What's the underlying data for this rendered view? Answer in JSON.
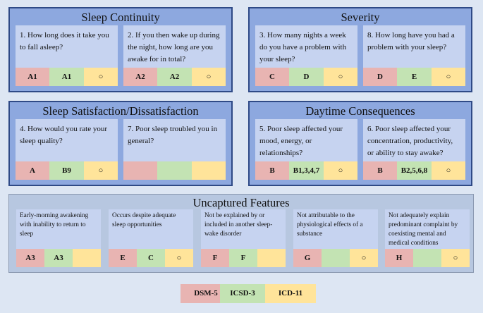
{
  "sleep_continuity": {
    "title": "Sleep Continuity",
    "q1": {
      "text": "1. How long does it take you to fall asleep?",
      "dsm": "A1",
      "icsd": "A1",
      "icd": "○"
    },
    "q2": {
      "text": "2. If you then wake up during the night, how long are you awake for in total?",
      "dsm": "A2",
      "icsd": "A2",
      "icd": "○"
    }
  },
  "severity": {
    "title": "Severity",
    "q3": {
      "text": "3. How many nights a week do you have a problem with your sleep?",
      "dsm": "C",
      "icsd": "D",
      "icd": "○"
    },
    "q8": {
      "text": "8. How long have you had a problem with your sleep?",
      "dsm": "D",
      "icsd": "E",
      "icd": "○"
    }
  },
  "satisfaction": {
    "title": "Sleep Satisfaction/Dissatisfaction",
    "q4": {
      "text": "4. How would you rate your sleep quality?",
      "dsm": "A",
      "icsd": "B9",
      "icd": "○"
    },
    "q7": {
      "text": "7. Poor sleep troubled you in general?",
      "dsm": "",
      "icsd": "",
      "icd": ""
    }
  },
  "daytime": {
    "title": "Daytime Consequences",
    "q5": {
      "text": "5. Poor sleep affected your mood, energy, or relationships?",
      "dsm": "B",
      "icsd": "B1,3,4,7",
      "icd": "○"
    },
    "q6": {
      "text": "6. Poor sleep affected your concentration, productivity, or ability to stay awake?",
      "dsm": "B",
      "icsd": "B2,5,6,8",
      "icd": "○"
    }
  },
  "uncaptured": {
    "title": "Uncaptured Features",
    "items": [
      {
        "text": "Early-morning awakening with inability to return to sleep",
        "dsm": "A3",
        "icsd": "A3",
        "icd": ""
      },
      {
        "text": "Occurs despite adequate sleep opportunities",
        "dsm": "E",
        "icsd": "C",
        "icd": "○"
      },
      {
        "text": "Not be explained by or included in another sleep-wake disorder",
        "dsm": "F",
        "icsd": "F",
        "icd": ""
      },
      {
        "text": "Not attributable to the physiological effects of a substance",
        "dsm": "G",
        "icsd": "",
        "icd": "○"
      },
      {
        "text": "Not adequately explain predominant complaint by coexisting mental and medical conditions",
        "dsm": "H",
        "icsd": "",
        "icd": "○"
      }
    ]
  },
  "legend": {
    "dsm": "DSM-5",
    "icsd": "ICSD-3",
    "icd": "ICD-11"
  },
  "colors": {
    "dsm": "#e8b4b2",
    "icsd": "#c3e3b3",
    "icd": "#ffe49a",
    "panel": "#8da8df",
    "card": "#c6d3f0",
    "border": "#2f4a86"
  }
}
